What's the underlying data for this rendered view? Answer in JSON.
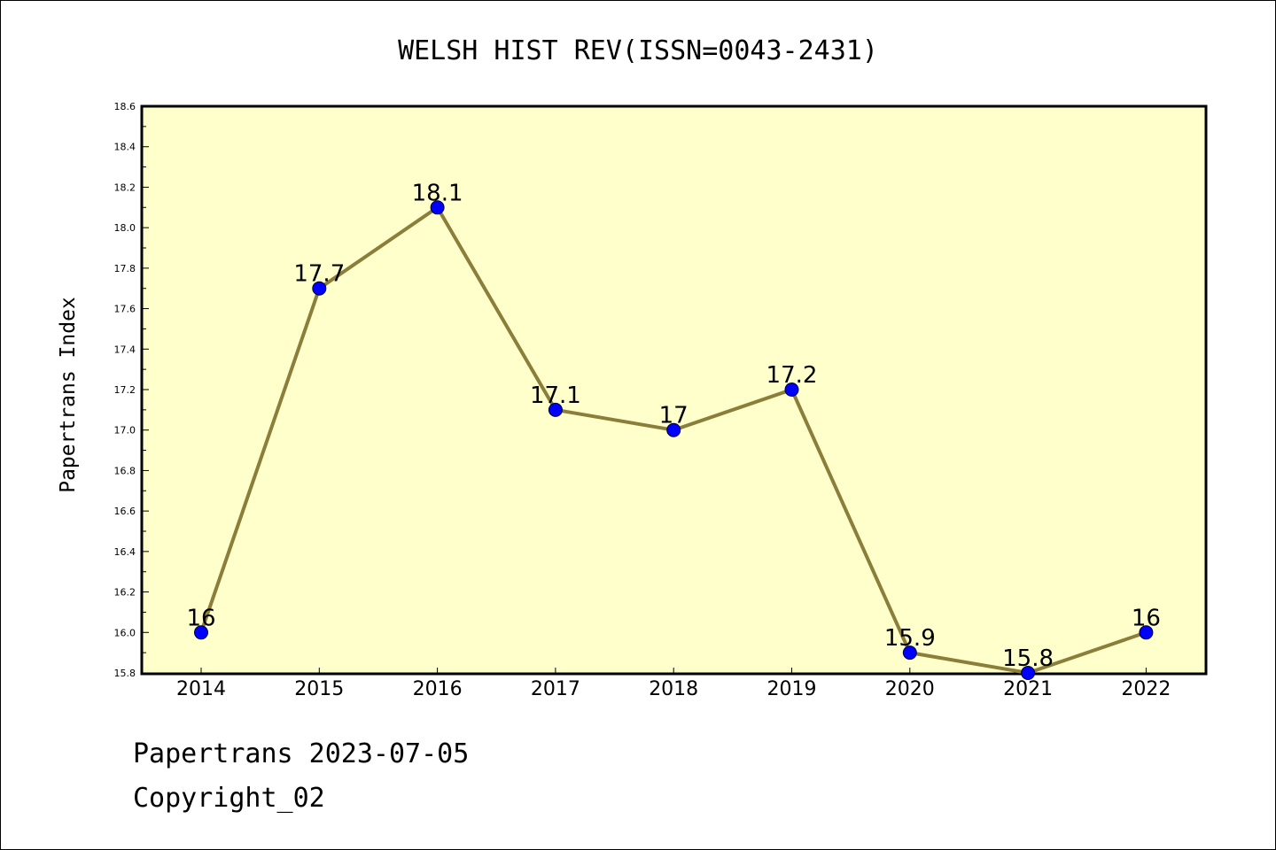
{
  "chart_data": {
    "type": "line",
    "title": "WELSH HIST REV(ISSN=0043-2431)",
    "ylabel": "Papertrans Index",
    "xlabel": "",
    "categories": [
      "2014",
      "2015",
      "2016",
      "2017",
      "2018",
      "2019",
      "2020",
      "2021",
      "2022"
    ],
    "values": [
      16.0,
      17.7,
      18.1,
      17.1,
      17.0,
      17.2,
      15.9,
      15.8,
      16.0
    ],
    "data_labels": [
      "16",
      "17.7",
      "18.1",
      "17.1",
      "17",
      "17.2",
      "15.9",
      "15.8",
      "16"
    ],
    "ylim": [
      15.8,
      18.6
    ],
    "yticks": [
      "15.8",
      "16.0",
      "16.2",
      "16.4",
      "16.6",
      "16.8",
      "17.0",
      "17.2",
      "17.4",
      "17.6",
      "17.8",
      "18.0",
      "18.2",
      "18.4",
      "18.6"
    ],
    "grid": false,
    "colors": {
      "plot_background": "#ffffcc",
      "line": "#8b7d3a",
      "marker": "#0000ff"
    }
  },
  "footer": {
    "line1": "Papertrans 2023-07-05",
    "line2": "Copyright_02"
  }
}
